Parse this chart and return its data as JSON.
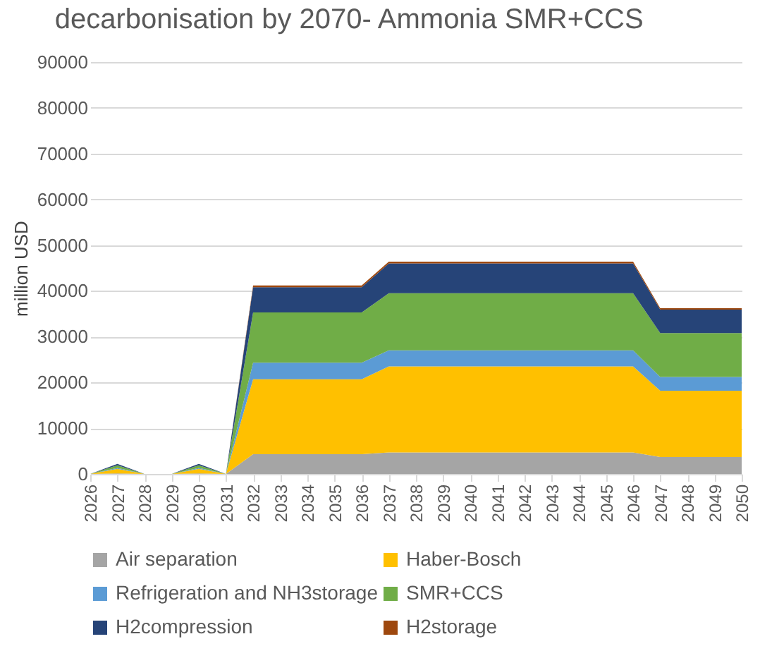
{
  "chart_data": {
    "type": "area",
    "stacked": true,
    "title": "decarbonisation by 2070- Ammonia SMR+CCS",
    "ylabel": "million USD",
    "categories": [
      "2026",
      "2027",
      "2028",
      "2029",
      "2030",
      "2031",
      "2032",
      "2033",
      "2034",
      "2035",
      "2036",
      "2037",
      "2038",
      "2039",
      "2040",
      "2041",
      "2042",
      "2043",
      "2044",
      "2045",
      "2046",
      "2047",
      "2048",
      "2049",
      "2050"
    ],
    "ylim": [
      0,
      90000
    ],
    "yticks": [
      0,
      10000,
      20000,
      30000,
      40000,
      50000,
      60000,
      70000,
      80000,
      90000
    ],
    "grid": "y",
    "legend": "bottom",
    "series": [
      {
        "name": "Air separation",
        "color": "#a5a5a5",
        "values": [
          0,
          100,
          0,
          0,
          100,
          0,
          4300,
          4300,
          4300,
          4300,
          4300,
          4700,
          4700,
          4700,
          4700,
          4700,
          4700,
          4700,
          4700,
          4700,
          4700,
          3700,
          3700,
          3700,
          3700
        ]
      },
      {
        "name": "Haber-Bosch",
        "color": "#ffc000",
        "values": [
          0,
          1000,
          0,
          0,
          1000,
          0,
          16400,
          16400,
          16400,
          16400,
          16400,
          18800,
          18800,
          18800,
          18800,
          18800,
          18800,
          18800,
          18800,
          18800,
          18800,
          14500,
          14500,
          14500,
          14500
        ]
      },
      {
        "name": "Refrigeration and NH3storage",
        "color": "#5b9bd5",
        "values": [
          0,
          200,
          0,
          0,
          200,
          0,
          3600,
          3600,
          3600,
          3600,
          3600,
          3500,
          3500,
          3500,
          3500,
          3500,
          3500,
          3500,
          3500,
          3500,
          3500,
          3000,
          3000,
          3000,
          3000
        ]
      },
      {
        "name": "SMR+CCS",
        "color": "#70ad47",
        "values": [
          0,
          600,
          0,
          0,
          600,
          0,
          11000,
          11000,
          11000,
          11000,
          11000,
          12500,
          12500,
          12500,
          12500,
          12500,
          12500,
          12500,
          12500,
          12500,
          12500,
          9600,
          9600,
          9600,
          9600
        ]
      },
      {
        "name": "H2compression",
        "color": "#264478",
        "values": [
          0,
          300,
          0,
          0,
          300,
          0,
          5500,
          5500,
          5500,
          5500,
          5500,
          6500,
          6500,
          6500,
          6500,
          6500,
          6500,
          6500,
          6500,
          6500,
          6500,
          5100,
          5100,
          5100,
          5100
        ]
      },
      {
        "name": "H2storage",
        "color": "#9e480e",
        "values": [
          0,
          0,
          0,
          0,
          0,
          0,
          400,
          400,
          400,
          400,
          400,
          400,
          400,
          400,
          400,
          400,
          400,
          400,
          400,
          400,
          400,
          300,
          300,
          300,
          300
        ]
      }
    ]
  }
}
